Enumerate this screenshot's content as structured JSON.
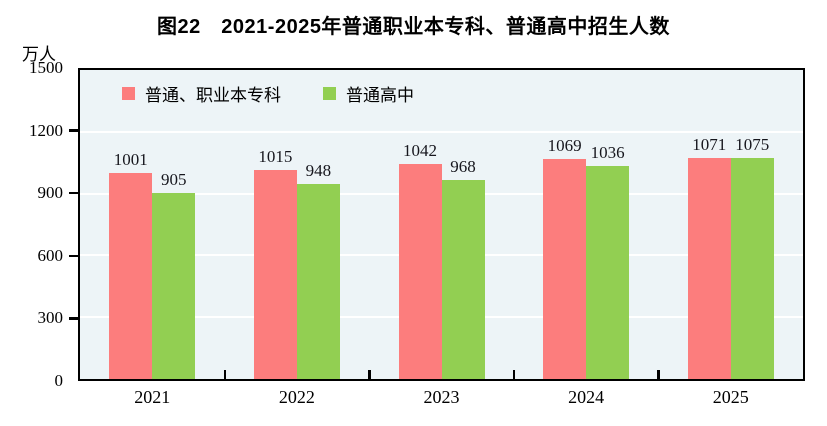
{
  "title": "图22　2021-2025年普通职业本专科、普通高中招生人数",
  "unit_label": "万人",
  "legend": {
    "items": [
      {
        "label": "普通、职业本专科",
        "color": "#fc7d7d"
      },
      {
        "label": "普通高中",
        "color": "#92cf52"
      }
    ]
  },
  "chart_data": {
    "type": "bar",
    "title": "图22　2021-2025年普通职业本专科、普通高中招生人数",
    "categories": [
      "2021",
      "2022",
      "2023",
      "2024",
      "2025"
    ],
    "series": [
      {
        "name": "普通、职业本专科",
        "color": "#fc7d7d",
        "values": [
          1001,
          1015,
          1042,
          1069,
          1071
        ]
      },
      {
        "name": "普通高中",
        "color": "#92cf52",
        "values": [
          905,
          948,
          968,
          1036,
          1075
        ]
      }
    ],
    "xlabel": "",
    "ylabel": "万人",
    "ylim": [
      0,
      1500
    ],
    "yticks": [
      0,
      300,
      600,
      900,
      1200,
      1500
    ],
    "grid": true,
    "gridline_color": "#ffffff",
    "plot_background": "#edf4f7",
    "axis_color": "#000000",
    "value_labels_shown": true,
    "legend_position": "top-left-inside"
  }
}
